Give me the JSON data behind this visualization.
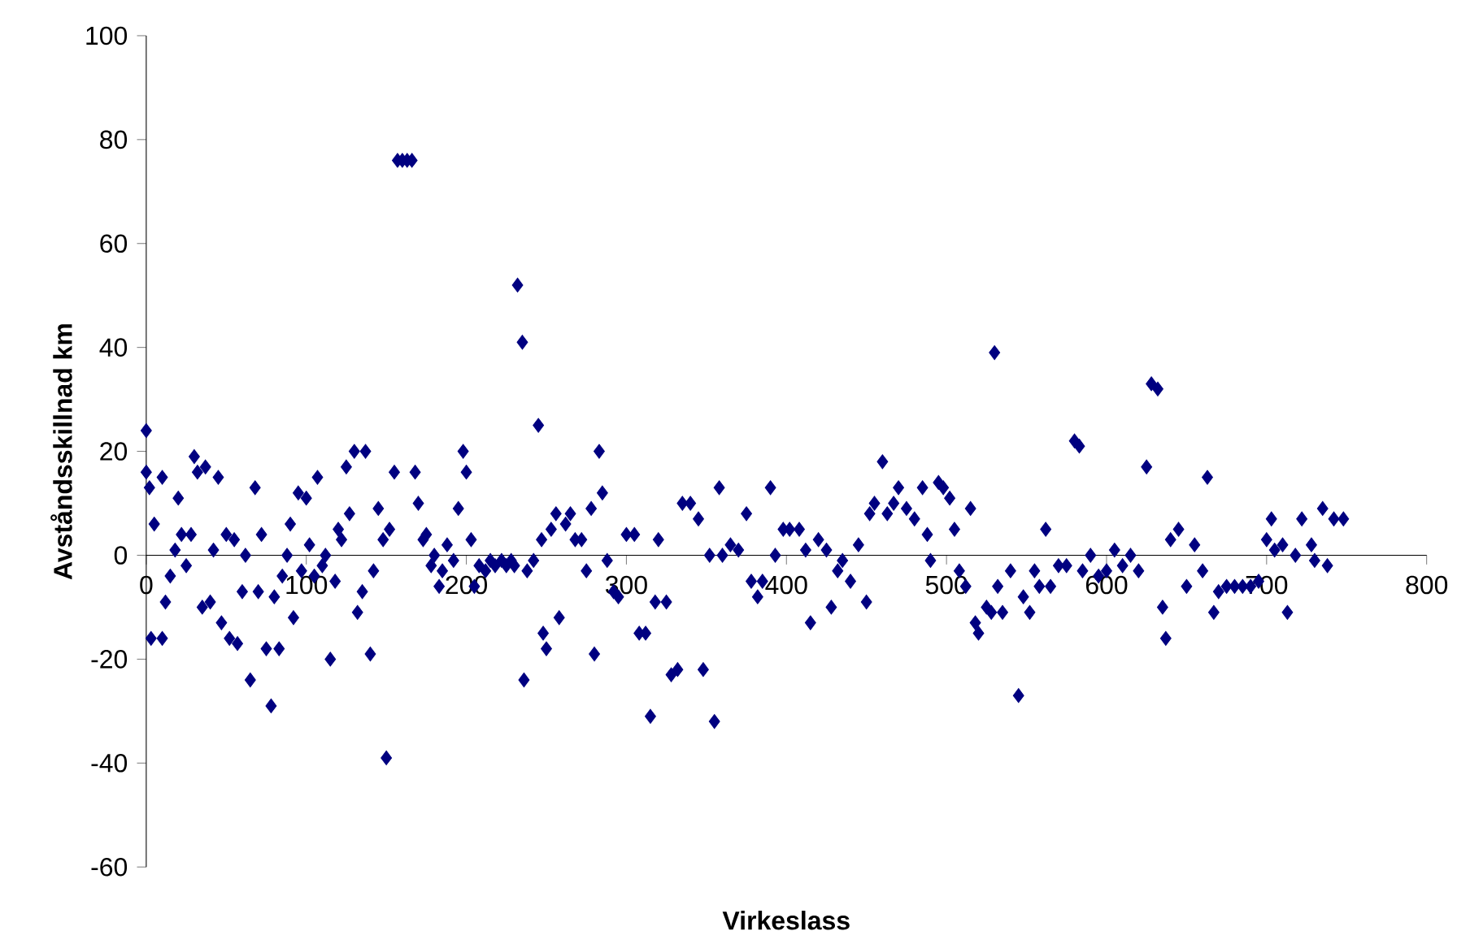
{
  "chart_data": {
    "type": "scatter",
    "xlabel": "Virkeslass",
    "ylabel": "Avståndsskillnad km",
    "color": "#000080",
    "marker": "diamond",
    "grid": false,
    "xlim": [
      0,
      800
    ],
    "ylim": [
      -60,
      100
    ],
    "xticks": [
      0,
      100,
      200,
      300,
      400,
      500,
      600,
      700,
      800
    ],
    "yticks": [
      -60,
      -40,
      -20,
      0,
      20,
      40,
      60,
      80,
      100
    ],
    "x": [
      0,
      0,
      2,
      5,
      3,
      10,
      10,
      12,
      15,
      18,
      20,
      22,
      25,
      28,
      30,
      32,
      35,
      37,
      40,
      42,
      45,
      47,
      50,
      52,
      55,
      57,
      60,
      62,
      65,
      68,
      70,
      72,
      75,
      78,
      80,
      83,
      85,
      88,
      90,
      92,
      95,
      97,
      100,
      102,
      105,
      107,
      110,
      112,
      115,
      118,
      120,
      122,
      125,
      127,
      130,
      132,
      135,
      137,
      140,
      142,
      145,
      148,
      150,
      152,
      155,
      157,
      160,
      163,
      166,
      168,
      170,
      173,
      175,
      178,
      180,
      183,
      185,
      188,
      192,
      195,
      198,
      200,
      203,
      205,
      208,
      212,
      215,
      218,
      222,
      225,
      228,
      230,
      232,
      235,
      236,
      238,
      242,
      245,
      247,
      248,
      250,
      253,
      256,
      258,
      262,
      265,
      268,
      272,
      275,
      278,
      280,
      283,
      285,
      288,
      292,
      295,
      300,
      305,
      308,
      312,
      315,
      318,
      320,
      325,
      328,
      332,
      335,
      340,
      345,
      348,
      352,
      355,
      358,
      360,
      365,
      370,
      375,
      378,
      382,
      385,
      390,
      393,
      398,
      402,
      408,
      412,
      415,
      420,
      425,
      428,
      432,
      435,
      440,
      445,
      450,
      452,
      455,
      460,
      463,
      467,
      470,
      475,
      480,
      485,
      488,
      490,
      495,
      498,
      502,
      505,
      508,
      512,
      515,
      518,
      520,
      525,
      528,
      530,
      532,
      535,
      540,
      545,
      548,
      552,
      555,
      558,
      562,
      565,
      570,
      575,
      580,
      583,
      585,
      590,
      595,
      600,
      605,
      610,
      615,
      620,
      625,
      628,
      632,
      635,
      637,
      640,
      645,
      650,
      655,
      660,
      663,
      667,
      670,
      675,
      680,
      685,
      690,
      695,
      700,
      703,
      705,
      710,
      713,
      718,
      722,
      728,
      730,
      735,
      738,
      742,
      748
    ],
    "values": [
      24,
      16,
      13,
      6,
      -16,
      -16,
      15,
      -9,
      -4,
      1,
      11,
      4,
      -2,
      4,
      19,
      16,
      -10,
      17,
      -9,
      1,
      15,
      -13,
      4,
      -16,
      3,
      -17,
      -7,
      0,
      -24,
      13,
      -7,
      4,
      -18,
      -29,
      -8,
      -18,
      -4,
      0,
      6,
      -12,
      12,
      -3,
      11,
      2,
      -4,
      15,
      -2,
      0,
      -20,
      -5,
      5,
      3,
      17,
      8,
      20,
      -11,
      -7,
      20,
      -19,
      -3,
      9,
      3,
      -39,
      5,
      16,
      76,
      76,
      76,
      76,
      16,
      10,
      3,
      4,
      -2,
      0,
      -6,
      -3,
      2,
      -1,
      9,
      20,
      16,
      3,
      -6,
      -2,
      -3,
      -1,
      -2,
      -1,
      -2,
      -1,
      -2,
      52,
      41,
      -24,
      -3,
      -1,
      25,
      3,
      -15,
      -18,
      5,
      8,
      -12,
      6,
      8,
      3,
      3,
      -3,
      9,
      -19,
      20,
      12,
      -1,
      -7,
      -8,
      4,
      4,
      -15,
      -15,
      -31,
      -9,
      3,
      -9,
      -23,
      -22,
      10,
      10,
      7,
      -22,
      0,
      -32,
      13,
      0,
      2,
      1,
      8,
      -5,
      -8,
      -5,
      13,
      0,
      5,
      5,
      5,
      1,
      -13,
      3,
      1,
      -10,
      -3,
      -1,
      -5,
      2,
      -9,
      8,
      10,
      18,
      8,
      10,
      13,
      9,
      7,
      13,
      4,
      -1,
      14,
      13,
      11,
      5,
      -3,
      -6,
      9,
      -13,
      -15,
      -10,
      -11,
      39,
      -6,
      -11,
      -3,
      -27,
      -8,
      -11,
      -3,
      -6,
      5,
      -6,
      -2,
      -2,
      22,
      21,
      -3,
      0,
      -4,
      -3,
      1,
      -2,
      0,
      -3,
      17,
      33,
      32,
      -10,
      -16,
      3,
      5,
      -6,
      2,
      -3,
      15,
      -11,
      -7,
      -6,
      -6,
      -6,
      -6,
      -5,
      3,
      7,
      1,
      2,
      -11,
      0,
      7,
      2,
      -1,
      9,
      -2,
      7,
      7
    ]
  }
}
